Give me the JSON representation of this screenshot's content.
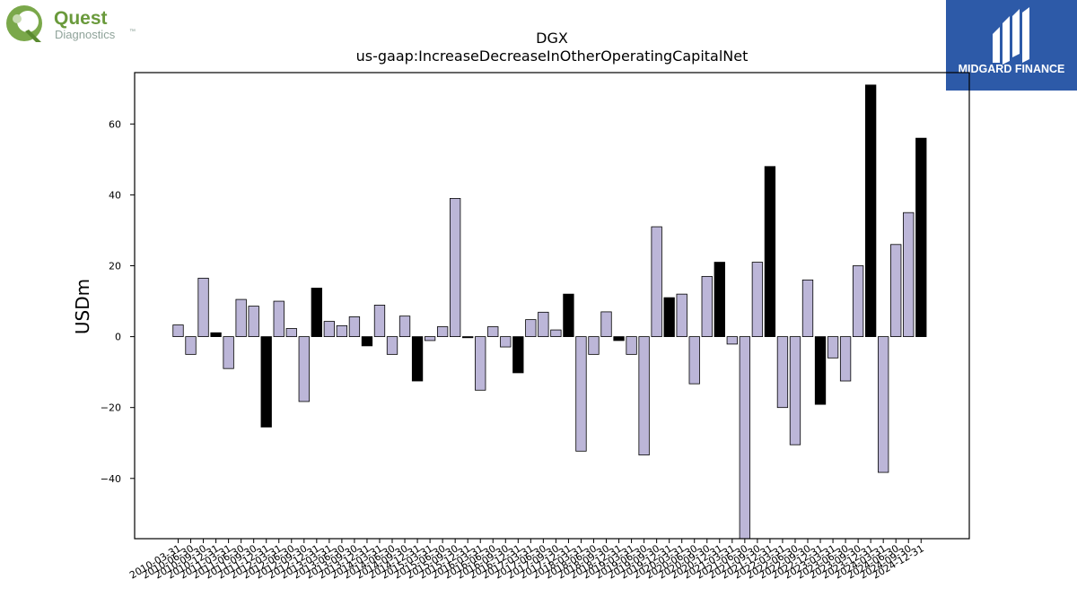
{
  "logos": {
    "left": {
      "line1": "Quest",
      "line2": "Diagnostics",
      "tm": "™",
      "primary_color": "#6a9a3c",
      "secondary_color": "#8fa39a"
    },
    "right": {
      "text": "MIDGARD FINANCE",
      "background": "#2d5aa8"
    }
  },
  "chart_data": {
    "type": "bar",
    "title": "DGX",
    "subtitle": "us-gaap:IncreaseDecreaseInOtherOperatingCapitalNet",
    "xlabel": "",
    "ylabel": "USDm",
    "ylim": [
      -57,
      74.5
    ],
    "yticks": [
      -40,
      -20,
      0,
      20,
      40,
      60
    ],
    "grid": false,
    "colors": {
      "quarter": "#bcb6d8",
      "year_end": "#000000"
    },
    "categories": [
      "2010-03-31",
      "2010-06-30",
      "2010-09-30",
      "2010-12-31",
      "2011-03-31",
      "2011-06-30",
      "2011-09-30",
      "2011-12-31",
      "2012-03-31",
      "2012-06-30",
      "2012-09-30",
      "2012-12-31",
      "2013-03-31",
      "2013-06-30",
      "2013-09-30",
      "2013-12-31",
      "2014-03-31",
      "2014-06-30",
      "2014-09-30",
      "2014-12-31",
      "2015-03-31",
      "2015-06-30",
      "2015-09-30",
      "2015-12-31",
      "2016-03-31",
      "2016-06-30",
      "2016-09-30",
      "2016-12-31",
      "2017-03-31",
      "2017-06-30",
      "2017-09-30",
      "2017-12-31",
      "2018-03-31",
      "2018-06-30",
      "2018-09-30",
      "2018-12-31",
      "2019-03-31",
      "2019-06-30",
      "2019-09-30",
      "2019-12-31",
      "2020-03-31",
      "2020-06-30",
      "2020-09-30",
      "2020-12-31",
      "2021-03-31",
      "2021-06-30",
      "2021-09-30",
      "2021-12-31",
      "2022-03-31",
      "2022-06-30",
      "2022-09-30",
      "2022-12-31",
      "2023-03-31",
      "2023-06-30",
      "2023-09-30",
      "2023-12-31",
      "2024-03-31",
      "2024-06-30",
      "2024-09-30",
      "2024-12-31"
    ],
    "values": [
      3.3,
      -5.0,
      16.5,
      1.1,
      -9.0,
      10.5,
      8.6,
      -25.5,
      10.0,
      2.3,
      -18.3,
      13.7,
      4.3,
      3.1,
      5.6,
      -2.6,
      8.9,
      -5.0,
      5.8,
      -12.5,
      -1.1,
      2.8,
      39.0,
      -0.3,
      -15.1,
      2.8,
      -2.9,
      -10.2,
      4.8,
      6.9,
      1.9,
      12.0,
      -32.3,
      -5.0,
      7.0,
      -1.1,
      -5.0,
      -33.4,
      31.0,
      11.0,
      12.0,
      -13.3,
      17.0,
      21.0,
      -2.1,
      -57.0,
      21.0,
      48.0,
      -20.0,
      -30.5,
      16.0,
      -19.1,
      -6.0,
      -12.5,
      20.0,
      71.0,
      -38.3,
      26.0,
      35.0,
      56.0
    ],
    "year_end_flags": [
      false,
      false,
      false,
      true,
      false,
      false,
      false,
      true,
      false,
      false,
      false,
      true,
      false,
      false,
      false,
      true,
      false,
      false,
      false,
      true,
      false,
      false,
      false,
      true,
      false,
      false,
      false,
      true,
      false,
      false,
      false,
      true,
      false,
      false,
      false,
      true,
      false,
      false,
      false,
      true,
      false,
      false,
      false,
      true,
      false,
      false,
      false,
      true,
      false,
      false,
      false,
      true,
      false,
      false,
      false,
      true,
      false,
      false,
      false,
      true
    ]
  }
}
